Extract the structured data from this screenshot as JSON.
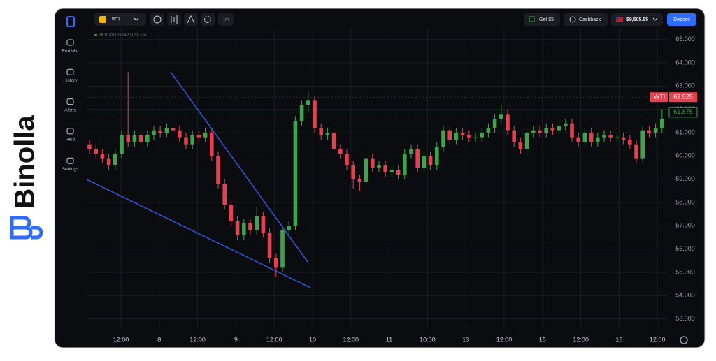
{
  "brand": "Binolla",
  "nav": [
    "Portfolio",
    "History",
    "Alerts",
    "Help",
    "Settings"
  ],
  "topbar": {
    "asset": "WTI",
    "timeframe": "1m",
    "bonus": "Get $5",
    "cashback": "Cashback",
    "balance": "$9,505.55",
    "deposit": "Deposit"
  },
  "timestamp": "25.11.2021  21:04:31  UTC +10",
  "chart_data": {
    "type": "candlestick",
    "symbol": "WTI",
    "ylim": [
      52.6,
      65.5
    ],
    "yticks": [
      {
        "value": 65,
        "label": "65.000"
      },
      {
        "value": 64,
        "label": "64.000"
      },
      {
        "value": 63,
        "label": "63.000"
      },
      {
        "value": 62,
        "label": "62.000"
      },
      {
        "value": 61,
        "label": "61.000"
      },
      {
        "value": 60,
        "label": "60.000"
      },
      {
        "value": 59,
        "label": "59.000"
      },
      {
        "value": 58,
        "label": "58.000"
      },
      {
        "value": 57,
        "label": "57.000"
      },
      {
        "value": 56,
        "label": "56.000"
      },
      {
        "value": 55,
        "label": "55.000"
      },
      {
        "value": 54,
        "label": "54.000"
      },
      {
        "value": 53,
        "label": "53.000"
      }
    ],
    "xtick_labels": [
      "12:00",
      "8",
      "12:00",
      "9",
      "12:00",
      "10",
      "12:00",
      "11",
      "10:00",
      "13",
      "12:00",
      "15",
      "12:00",
      "16",
      "12:00"
    ],
    "price_tags": [
      {
        "label": "WTI",
        "value": 62.525,
        "color": "#e5404f"
      },
      {
        "value": 61.875,
        "color": "#3fa34d"
      }
    ],
    "up_color": "#3fa34d",
    "down_color": "#e5404f",
    "grid": true,
    "candles": [
      [
        60.5,
        60.7,
        60.1,
        60.3
      ],
      [
        60.3,
        60.5,
        59.9,
        60.1
      ],
      [
        60.1,
        60.3,
        59.7,
        59.9
      ],
      [
        59.9,
        60.1,
        59.4,
        59.6
      ],
      [
        59.6,
        60.3,
        59.4,
        60.1
      ],
      [
        60.1,
        61.1,
        59.9,
        60.9
      ],
      [
        60.9,
        63.6,
        60.4,
        60.6
      ],
      [
        60.6,
        61.1,
        60.4,
        60.9
      ],
      [
        60.9,
        61.1,
        60.4,
        60.6
      ],
      [
        60.6,
        61.1,
        60.4,
        60.9
      ],
      [
        60.9,
        61.3,
        60.7,
        61.1
      ],
      [
        61.1,
        61.3,
        60.8,
        61.0
      ],
      [
        61.0,
        61.4,
        60.8,
        61.2
      ],
      [
        61.2,
        61.4,
        60.9,
        61.1
      ],
      [
        61.1,
        61.3,
        60.6,
        60.8
      ],
      [
        60.8,
        61.0,
        60.3,
        60.5
      ],
      [
        60.5,
        61.1,
        60.3,
        60.9
      ],
      [
        60.9,
        61.1,
        60.6,
        60.8
      ],
      [
        60.8,
        61.2,
        60.6,
        61.0
      ],
      [
        61.0,
        61.2,
        59.8,
        60.0
      ],
      [
        60.0,
        60.2,
        58.6,
        58.8
      ],
      [
        58.8,
        59.0,
        57.7,
        57.9
      ],
      [
        57.9,
        58.1,
        57.0,
        57.2
      ],
      [
        57.2,
        57.4,
        56.4,
        56.6
      ],
      [
        56.6,
        57.3,
        56.4,
        57.1
      ],
      [
        57.1,
        57.3,
        56.6,
        56.8
      ],
      [
        56.8,
        57.8,
        56.6,
        57.4
      ],
      [
        57.4,
        57.6,
        56.5,
        56.7
      ],
      [
        56.7,
        56.9,
        55.4,
        55.6
      ],
      [
        55.6,
        55.8,
        54.8,
        55.2
      ],
      [
        55.2,
        57.0,
        55.0,
        56.8
      ],
      [
        56.8,
        57.2,
        56.5,
        57.0
      ],
      [
        57.0,
        61.7,
        56.8,
        61.5
      ],
      [
        61.5,
        62.4,
        61.3,
        62.2
      ],
      [
        62.2,
        62.8,
        61.9,
        62.4
      ],
      [
        62.4,
        62.6,
        61.0,
        61.2
      ],
      [
        61.2,
        61.4,
        60.7,
        60.9
      ],
      [
        60.9,
        61.2,
        60.7,
        61.0
      ],
      [
        61.0,
        61.2,
        60.1,
        60.3
      ],
      [
        60.3,
        60.5,
        59.9,
        60.1
      ],
      [
        60.1,
        60.3,
        59.4,
        59.6
      ],
      [
        59.6,
        59.8,
        58.6,
        59.0
      ],
      [
        59.0,
        59.2,
        58.5,
        58.9
      ],
      [
        58.9,
        60.1,
        58.7,
        59.9
      ],
      [
        59.9,
        60.1,
        59.3,
        59.5
      ],
      [
        59.5,
        59.8,
        59.3,
        59.6
      ],
      [
        59.6,
        59.8,
        59.1,
        59.3
      ],
      [
        59.3,
        59.6,
        59.1,
        59.4
      ],
      [
        59.4,
        59.6,
        59.0,
        59.2
      ],
      [
        59.2,
        60.3,
        59.0,
        60.1
      ],
      [
        60.1,
        60.5,
        59.9,
        60.3
      ],
      [
        60.3,
        60.5,
        59.3,
        59.5
      ],
      [
        59.5,
        60.2,
        59.3,
        60.0
      ],
      [
        60.0,
        60.2,
        59.4,
        59.6
      ],
      [
        59.6,
        60.6,
        59.4,
        60.4
      ],
      [
        60.4,
        61.3,
        60.2,
        61.1
      ],
      [
        61.1,
        61.3,
        60.5,
        60.7
      ],
      [
        60.7,
        61.2,
        60.5,
        61.0
      ],
      [
        61.0,
        61.2,
        60.7,
        60.9
      ],
      [
        60.9,
        61.1,
        60.6,
        60.8
      ],
      [
        60.8,
        61.0,
        60.6,
        60.8
      ],
      [
        60.8,
        61.2,
        60.6,
        61.0
      ],
      [
        61.0,
        61.4,
        60.8,
        61.2
      ],
      [
        61.2,
        61.8,
        61.0,
        61.6
      ],
      [
        61.6,
        62.2,
        61.4,
        61.8
      ],
      [
        61.8,
        62.0,
        60.9,
        61.1
      ],
      [
        61.1,
        61.3,
        60.4,
        60.6
      ],
      [
        60.6,
        60.8,
        60.1,
        60.3
      ],
      [
        60.3,
        61.2,
        60.1,
        61.0
      ],
      [
        61.0,
        61.3,
        60.8,
        61.1
      ],
      [
        61.1,
        61.3,
        60.8,
        61.0
      ],
      [
        61.0,
        61.4,
        60.8,
        61.2
      ],
      [
        61.2,
        61.4,
        60.9,
        61.1
      ],
      [
        61.1,
        61.5,
        60.9,
        61.3
      ],
      [
        61.3,
        61.6,
        61.1,
        61.4
      ],
      [
        61.4,
        61.6,
        60.6,
        60.8
      ],
      [
        60.8,
        61.0,
        60.4,
        60.6
      ],
      [
        60.6,
        61.2,
        60.4,
        61.0
      ],
      [
        61.0,
        61.2,
        60.4,
        60.6
      ],
      [
        60.6,
        61.0,
        60.4,
        60.8
      ],
      [
        60.8,
        61.1,
        60.6,
        60.9
      ],
      [
        60.9,
        61.1,
        60.6,
        60.8
      ],
      [
        60.8,
        61.0,
        60.6,
        60.8
      ],
      [
        60.8,
        61.0,
        60.5,
        60.7
      ],
      [
        60.7,
        60.9,
        60.3,
        60.5
      ],
      [
        60.5,
        60.7,
        59.7,
        59.9
      ],
      [
        59.9,
        61.3,
        59.7,
        61.1
      ],
      [
        61.1,
        61.3,
        60.8,
        61.0
      ],
      [
        61.0,
        61.4,
        60.8,
        61.2
      ],
      [
        61.2,
        62.0,
        61.0,
        61.6
      ]
    ]
  }
}
